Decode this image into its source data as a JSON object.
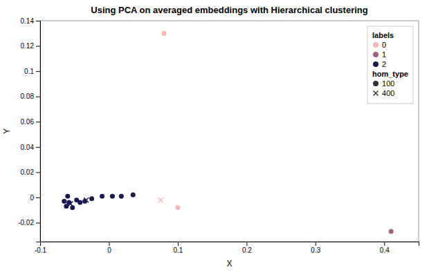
{
  "chart_data": {
    "type": "scatter",
    "title": "Using PCA on averaged embeddings with Hierarchical clustering",
    "xlabel": "X",
    "ylabel": "Y",
    "xlim": [
      -0.1,
      0.45
    ],
    "ylim": [
      -0.035,
      0.14
    ],
    "xticks": [
      -0.1,
      0,
      0.1,
      0.2,
      0.3,
      0.4
    ],
    "yticks": [
      -0.02,
      0,
      0.02,
      0.04,
      0.06,
      0.08,
      0.1,
      0.12,
      0.14
    ],
    "grid": false,
    "legend": "upper right",
    "color_legend_title": "labels",
    "marker_legend_title": "hom_type",
    "markers": [
      {
        "name": "100",
        "marker": "circle",
        "color": "#333333"
      },
      {
        "name": "400",
        "marker": "x",
        "color": "#333333"
      }
    ],
    "series": [
      {
        "name": "0",
        "color": "#f4b8b8",
        "x": [
          0.08,
          0.1,
          0.075
        ],
        "values": [
          0.13,
          -0.008,
          -0.002
        ],
        "hom_type": [
          100,
          100,
          400
        ]
      },
      {
        "name": "1",
        "color": "#a06080",
        "x": [
          0.41
        ],
        "values": [
          -0.027
        ],
        "hom_type": [
          100
        ]
      },
      {
        "name": "2",
        "color": "#191950",
        "x": [
          -0.058,
          -0.062,
          -0.065,
          -0.06,
          -0.053,
          -0.047,
          -0.042,
          -0.035,
          -0.025,
          -0.01,
          0.005,
          0.018,
          0.035,
          -0.056,
          -0.033
        ],
        "values": [
          -0.004,
          -0.007,
          -0.003,
          0.001,
          -0.008,
          -0.002,
          -0.004,
          -0.003,
          -0.001,
          0.001,
          0.001,
          0.001,
          0.002,
          -0.005,
          -0.002
        ],
        "hom_type": [
          100,
          100,
          100,
          100,
          100,
          100,
          100,
          100,
          100,
          100,
          100,
          100,
          100,
          400,
          400
        ]
      }
    ]
  }
}
